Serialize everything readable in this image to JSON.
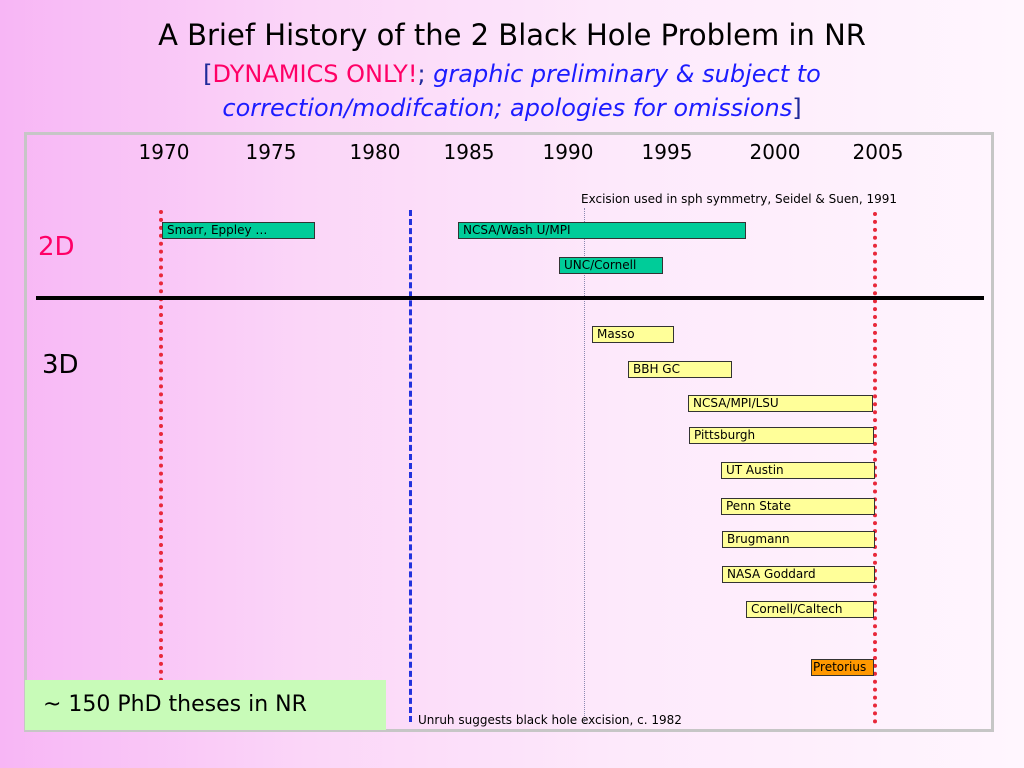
{
  "title": {
    "line1": "A Brief History of the 2 Black Hole Problem in NR",
    "line2_open": "[",
    "line2_emphasis": "DYNAMICS ONLY!",
    "line2_sep": ";",
    "line2_italic": " graphic preliminary & subject to",
    "line3_italic": "correction/modifcation; apologies for omissions",
    "line3_close": "]"
  },
  "timeline": {
    "years": [
      "1970",
      "1975",
      "1980",
      "1985",
      "1990",
      "1995",
      "2000",
      "2005"
    ],
    "dimension_2d": "2D",
    "dimension_3d": "3D",
    "events": {
      "excision_sph": "Excision used in sph symmetry, Seidel & Suen, 1991",
      "unruh": "Unruh suggests black hole excision, c. 1982"
    },
    "groups_2d": [
      {
        "label": "Smarr, Eppley …",
        "start": 1970,
        "end": 1977
      },
      {
        "label": "NCSA/Wash U/MPI",
        "start": 1984.5,
        "end": 1998
      },
      {
        "label": "UNC/Cornell",
        "start": 1989.5,
        "end": 1994.5
      }
    ],
    "groups_3d": [
      {
        "label": "Masso",
        "start": 1991,
        "end": 1995
      },
      {
        "label": "BBH GC",
        "start": 1993,
        "end": 1998
      },
      {
        "label": "NCSA/MPI/LSU",
        "start": 1996,
        "end": 2005
      },
      {
        "label": "Pittsburgh",
        "start": 1996,
        "end": 2005
      },
      {
        "label": "UT Austin",
        "start": 1997.5,
        "end": 2005
      },
      {
        "label": "Penn State",
        "start": 1997.5,
        "end": 2005
      },
      {
        "label": "Brugmann",
        "start": 1997.5,
        "end": 2005
      },
      {
        "label": "NASA Goddard",
        "start": 1997.5,
        "end": 2005
      },
      {
        "label": "Cornell/Caltech",
        "start": 1999,
        "end": 2005
      },
      {
        "label": "Pretorius",
        "start": 2002,
        "end": 2005
      }
    ],
    "colors": {
      "group_2d": "#00cc99",
      "group_3d": "#ffff99",
      "highlight": "#ff9900",
      "milestone_red": "#e8283a",
      "milestone_blue": "#2233dd"
    }
  },
  "summary": "~ 150 PhD theses in NR"
}
